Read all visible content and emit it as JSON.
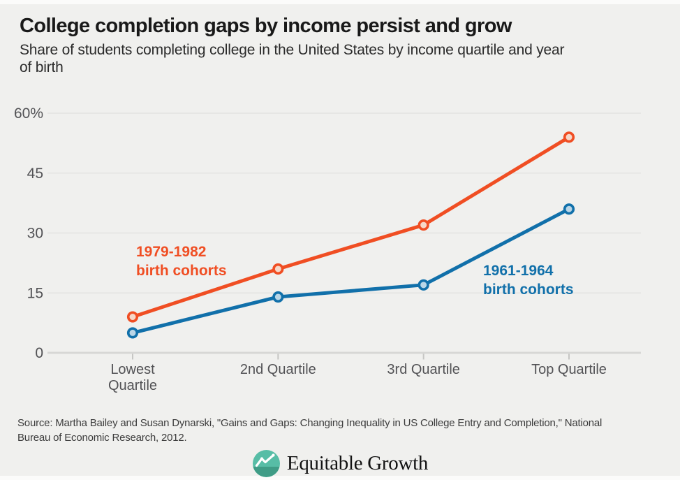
{
  "header": {
    "title": "College completion gaps by income persist and grow",
    "subtitle": "Share of students completing college in the United States by income quartile and year of birth",
    "subtitle_lines": [
      "Share of students completing college in the United States by income quartile and year",
      "of birth"
    ]
  },
  "chart_data": {
    "type": "line",
    "title": "College completion gaps by income persist and grow",
    "subtitle": "Share of students completing college in the United States by income quartile and year of birth",
    "categories": [
      "Lowest Quartile",
      "2nd Quartile",
      "3rd Quartile",
      "Top Quartile"
    ],
    "category_label_lines": [
      [
        "Lowest",
        "Quartile"
      ],
      [
        "2nd Quartile"
      ],
      [
        "3rd Quartile"
      ],
      [
        "Top Quartile"
      ]
    ],
    "series": [
      {
        "name": "1979-1982 birth cohorts",
        "label_lines": [
          "1979-1982",
          "birth cohorts"
        ],
        "values": [
          9,
          21,
          32,
          54
        ],
        "color": "#f04e23",
        "marker_fill": "#f6d8c9"
      },
      {
        "name": "1961-1964 birth cohorts",
        "label_lines": [
          "1961-1964",
          "birth cohorts"
        ],
        "values": [
          5,
          14,
          17,
          36
        ],
        "color": "#1170aa",
        "marker_fill": "#bad6e7"
      }
    ],
    "xlabel": "",
    "ylabel": "",
    "ylim": [
      0,
      60
    ],
    "yticks": [
      0,
      15,
      30,
      45,
      60
    ],
    "ytick_labels": [
      "0",
      "15",
      "30",
      "45",
      "60%"
    ],
    "grid": true,
    "legend_position": "inline annotations next to lines"
  },
  "footer": {
    "source_lines": [
      "Source: Martha Bailey and Susan Dynarski, \"Gains and Gaps: Changing Inequality in US College Entry and Completion,\" National",
      "Bureau of Economic Research, 2012."
    ],
    "logo_text": "Equitable Growth"
  },
  "colors": {
    "background": "#f0f0ee",
    "grid": "#e3e3e1",
    "axis": "#d7d7d5",
    "tick": "#c6c6c4",
    "axis_label": "#525255",
    "source": "#3c3c3c",
    "logo_teal": "#57bda6",
    "logo_teal_dark": "#3f9c86"
  }
}
